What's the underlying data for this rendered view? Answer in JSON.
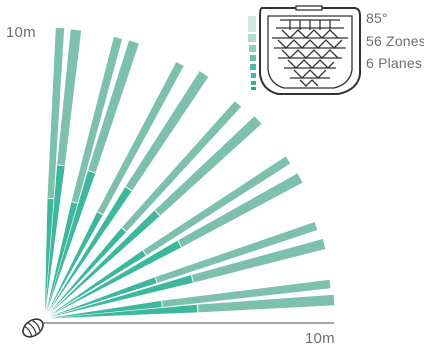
{
  "labels": {
    "range_vertical": "10m",
    "range_horizontal": "10m"
  },
  "specs": {
    "angle": "85°",
    "zones": "56 Zones",
    "planes": "6 Planes"
  },
  "colors": {
    "beam_light": "#7ec0ae",
    "beam_dark": "#3eb89d",
    "axis_line": "#4d4d4f",
    "text": "#6d6e71"
  },
  "icons": {
    "sensor": "sensor-head-icon",
    "lens": "fresnel-lens-icon"
  }
}
